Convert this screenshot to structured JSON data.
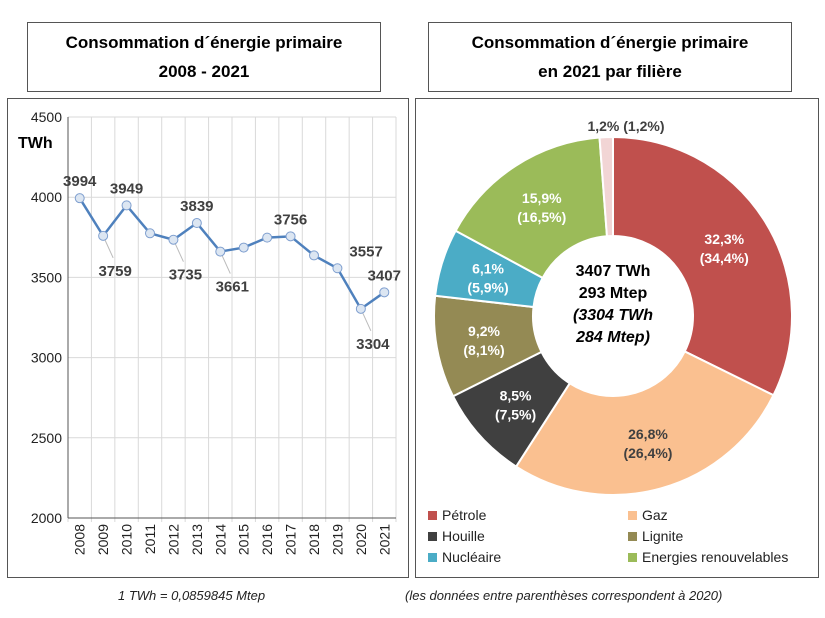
{
  "left": {
    "title_line1": "Consommation d´énergie primaire",
    "title_line2": "2008 - 2021",
    "footnote": "1 TWh = 0,0859845 Mtep"
  },
  "right": {
    "title_line1": "Consommation d´énergie primaire",
    "title_line2": "en 2021 par filière",
    "footnote": "(les données entre parenthèses correspondent à 2020)",
    "center": [
      "3407 TWh",
      "293 Mtep",
      "(3304 TWh",
      "284 Mtep)"
    ]
  },
  "chart_data": [
    {
      "type": "line",
      "ylabel": "TWh",
      "ylim": [
        2000,
        4500
      ],
      "yticks": [
        2000,
        2500,
        3000,
        3500,
        4000,
        4500
      ],
      "grid": true,
      "categories": [
        "2008",
        "2009",
        "2010",
        "2011",
        "2012",
        "2013",
        "2014",
        "2015",
        "2016",
        "2017",
        "2018",
        "2019",
        "2020",
        "2021"
      ],
      "values": [
        3994,
        3759,
        3949,
        3775,
        3735,
        3839,
        3661,
        3686,
        3748,
        3756,
        3637,
        3557,
        3304,
        3407
      ],
      "data_labels": [
        "3994",
        "3759",
        "3949",
        "",
        "3735",
        "3839",
        "3661",
        "",
        "",
        "3756",
        "",
        "3557",
        "3304",
        "3407"
      ],
      "color": "#4f81bd"
    },
    {
      "type": "pie",
      "donut": true,
      "slices": [
        {
          "name": "Pétrole",
          "value": 32.3,
          "label": "32,3%",
          "label2": "(34,4%)",
          "color": "#c0504d",
          "legend": true
        },
        {
          "name": "Gaz",
          "value": 26.8,
          "label": "26,8%",
          "label2": "(26,4%)",
          "color": "#fac090",
          "legend": true
        },
        {
          "name": "Houille",
          "value": 8.5,
          "label": "8,5%",
          "label2": "(7,5%)",
          "color": "#404040",
          "legend": true
        },
        {
          "name": "Lignite",
          "value": 9.2,
          "label": "9,2%",
          "label2": "(8,1%)",
          "color": "#948a54",
          "legend": true
        },
        {
          "name": "Nucléaire",
          "value": 6.1,
          "label": "6,1%",
          "label2": "(5,9%)",
          "color": "#4bacc6",
          "legend": true
        },
        {
          "name": "Energies renouvelables",
          "value": 15.9,
          "label": "15,9%",
          "label2": "(16,5%)",
          "color": "#9bbb59",
          "legend": true
        },
        {
          "name": "",
          "value": 1.2,
          "label": "1,2% (1,2%)",
          "label2": "",
          "color": "#f2d5d5",
          "legend": false
        }
      ],
      "legend_position": "bottom"
    }
  ]
}
